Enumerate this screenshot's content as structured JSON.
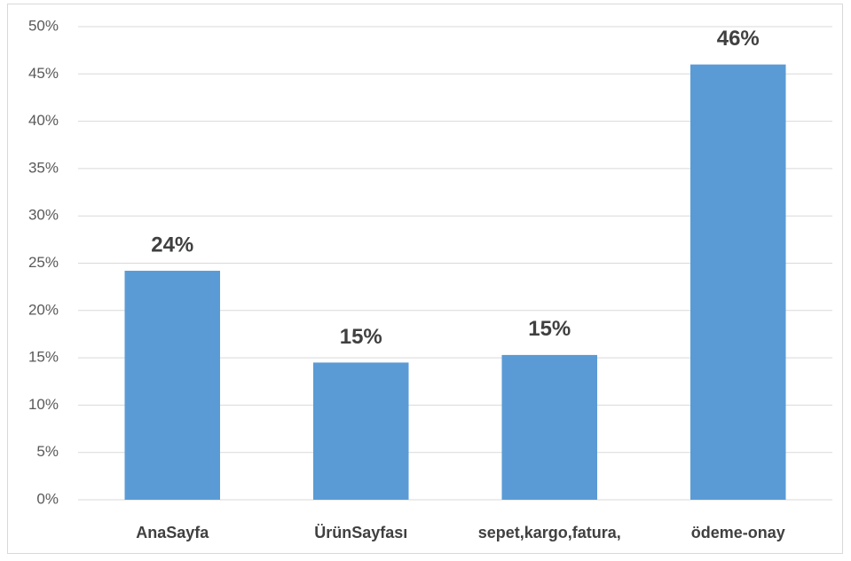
{
  "chart_data": {
    "type": "bar",
    "categories": [
      "AnaSayfa",
      "ÜrünSayfası",
      "sepet,kargo,fatura,",
      "ödeme-onay"
    ],
    "values": [
      24.2,
      14.5,
      15.3,
      46
    ],
    "value_labels": [
      "24%",
      "15%",
      "15%",
      "46%"
    ],
    "color": "#5b9bd5",
    "ylim": [
      0,
      50
    ],
    "yticks": [
      {
        "value": 0,
        "label": "0%"
      },
      {
        "value": 5,
        "label": "5%"
      },
      {
        "value": 10,
        "label": "10%"
      },
      {
        "value": 15,
        "label": "15%"
      },
      {
        "value": 20,
        "label": "20%"
      },
      {
        "value": 25,
        "label": "25%"
      },
      {
        "value": 30,
        "label": "30%"
      },
      {
        "value": 35,
        "label": "35%"
      },
      {
        "value": 40,
        "label": "40%"
      },
      {
        "value": 45,
        "label": "45%"
      },
      {
        "value": 50,
        "label": "50%"
      }
    ],
    "grid": true
  }
}
